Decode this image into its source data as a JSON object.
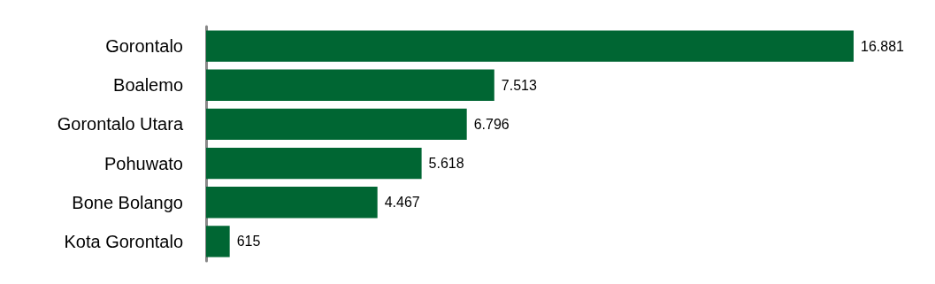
{
  "chart_data": {
    "type": "bar",
    "orientation": "horizontal",
    "categories": [
      "Gorontalo",
      "Boalemo",
      "Gorontalo Utara",
      "Pohuwato",
      "Bone Bolango",
      "Kota Gorontalo"
    ],
    "values": [
      16881,
      7513,
      6796,
      5618,
      4467,
      615
    ],
    "value_labels": [
      "16.881",
      "7.513",
      "6.796",
      "5.618",
      "4.467",
      "615"
    ],
    "color": "#006633"
  }
}
